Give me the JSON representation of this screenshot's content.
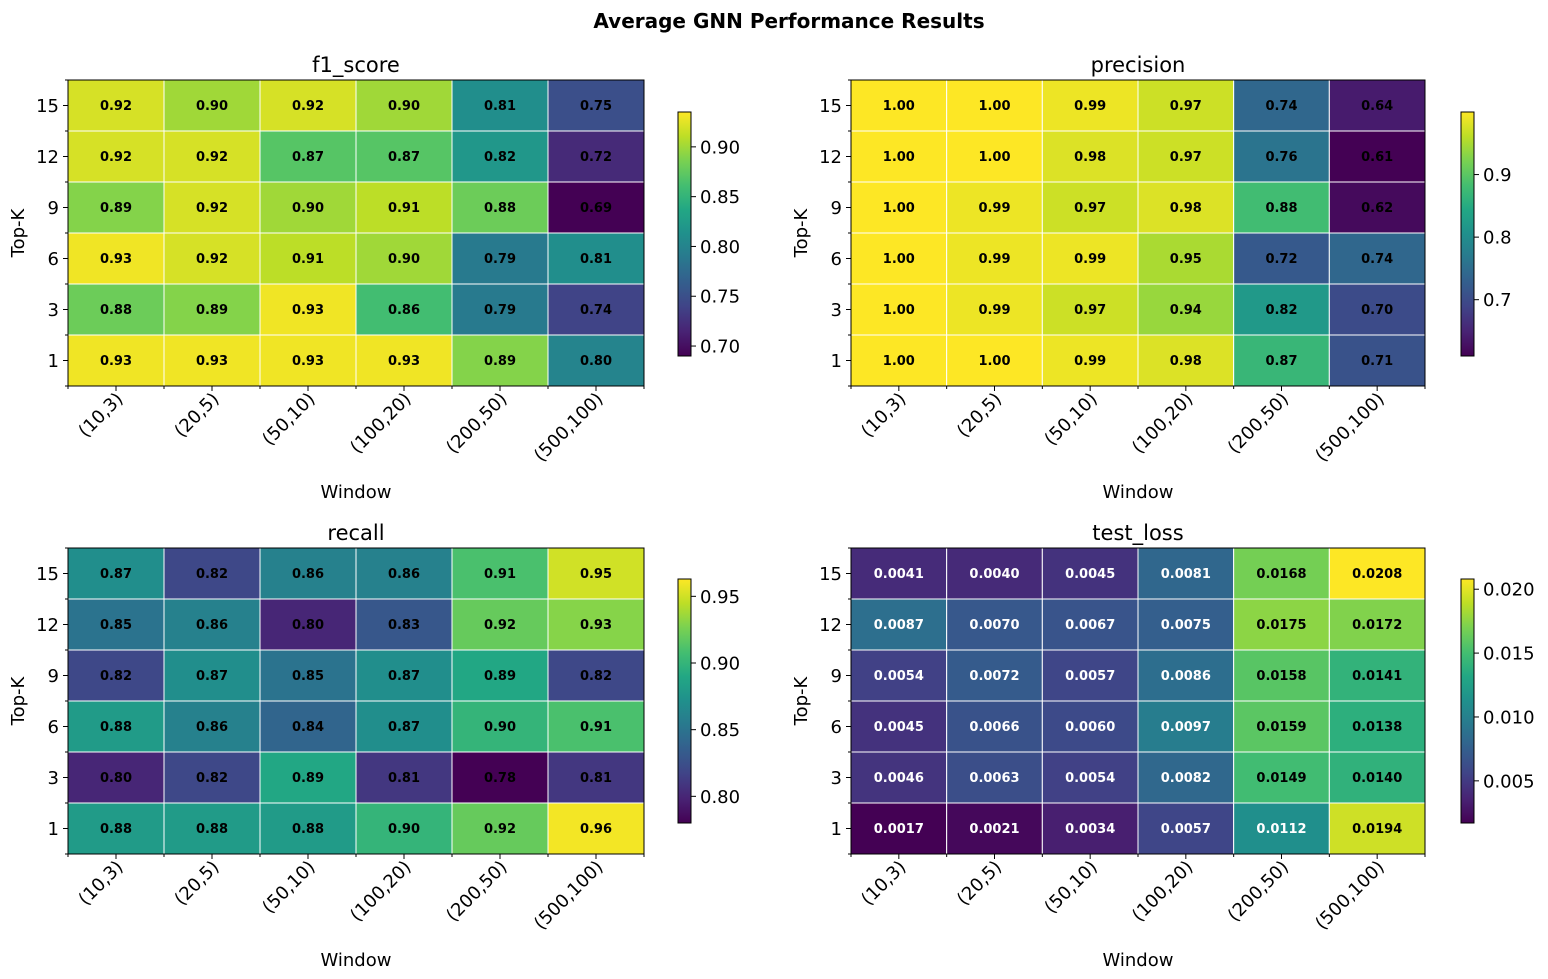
{
  "figure": {
    "title": "Average GNN Performance Results"
  },
  "chart_data": [
    {
      "type": "heatmap",
      "title": "f1_score",
      "xlabel": "Window",
      "ylabel": "Top-K",
      "x_categories": [
        "(10,3)",
        "(20,5)",
        "(50,10)",
        "(100,20)",
        "(200,50)",
        "(500,100)"
      ],
      "y_categories": [
        "15",
        "12",
        "9",
        "6",
        "3",
        "1"
      ],
      "values": [
        [
          0.92,
          0.9,
          0.92,
          0.9,
          0.81,
          0.75
        ],
        [
          0.92,
          0.92,
          0.87,
          0.87,
          0.82,
          0.72
        ],
        [
          0.89,
          0.92,
          0.9,
          0.91,
          0.88,
          0.69
        ],
        [
          0.93,
          0.92,
          0.91,
          0.9,
          0.79,
          0.81
        ],
        [
          0.88,
          0.89,
          0.93,
          0.86,
          0.79,
          0.74
        ],
        [
          0.93,
          0.93,
          0.93,
          0.93,
          0.89,
          0.8
        ]
      ],
      "decimals": 2,
      "label_color": "black",
      "colormap": "viridis",
      "color_range": [
        0.69,
        0.935
      ],
      "colorbar_ticks": [
        "0.70",
        "0.75",
        "0.80",
        "0.85",
        "0.90"
      ]
    },
    {
      "type": "heatmap",
      "title": "precision",
      "xlabel": "Window",
      "ylabel": "Top-K",
      "x_categories": [
        "(10,3)",
        "(20,5)",
        "(50,10)",
        "(100,20)",
        "(200,50)",
        "(500,100)"
      ],
      "y_categories": [
        "15",
        "12",
        "9",
        "6",
        "3",
        "1"
      ],
      "values": [
        [
          1.0,
          1.0,
          0.99,
          0.97,
          0.74,
          0.64
        ],
        [
          1.0,
          1.0,
          0.98,
          0.97,
          0.76,
          0.61
        ],
        [
          1.0,
          0.99,
          0.97,
          0.98,
          0.88,
          0.62
        ],
        [
          1.0,
          0.99,
          0.99,
          0.95,
          0.72,
          0.74
        ],
        [
          1.0,
          0.99,
          0.97,
          0.94,
          0.82,
          0.7
        ],
        [
          1.0,
          1.0,
          0.99,
          0.98,
          0.87,
          0.71
        ]
      ],
      "decimals": 2,
      "label_color": "black",
      "colormap": "viridis",
      "color_range": [
        0.61,
        1.0
      ],
      "colorbar_ticks": [
        "0.7",
        "0.8",
        "0.9"
      ]
    },
    {
      "type": "heatmap",
      "title": "recall",
      "xlabel": "Window",
      "ylabel": "Top-K",
      "x_categories": [
        "(10,3)",
        "(20,5)",
        "(50,10)",
        "(100,20)",
        "(200,50)",
        "(500,100)"
      ],
      "y_categories": [
        "15",
        "12",
        "9",
        "6",
        "3",
        "1"
      ],
      "values": [
        [
          0.87,
          0.82,
          0.86,
          0.86,
          0.91,
          0.95
        ],
        [
          0.85,
          0.86,
          0.8,
          0.83,
          0.92,
          0.93
        ],
        [
          0.82,
          0.87,
          0.85,
          0.87,
          0.89,
          0.82
        ],
        [
          0.88,
          0.86,
          0.84,
          0.87,
          0.9,
          0.91
        ],
        [
          0.8,
          0.82,
          0.89,
          0.81,
          0.78,
          0.81
        ],
        [
          0.88,
          0.88,
          0.88,
          0.9,
          0.92,
          0.96
        ]
      ],
      "decimals": 2,
      "label_color": "black",
      "colormap": "viridis",
      "color_range": [
        0.78,
        0.963
      ],
      "colorbar_ticks": [
        "0.80",
        "0.85",
        "0.90",
        "0.95"
      ]
    },
    {
      "type": "heatmap",
      "title": "test_loss",
      "xlabel": "Window",
      "ylabel": "Top-K",
      "x_categories": [
        "(10,3)",
        "(20,5)",
        "(50,10)",
        "(100,20)",
        "(200,50)",
        "(500,100)"
      ],
      "y_categories": [
        "15",
        "12",
        "9",
        "6",
        "3",
        "1"
      ],
      "values": [
        [
          0.0041,
          0.004,
          0.0045,
          0.0081,
          0.0168,
          0.0208
        ],
        [
          0.0087,
          0.007,
          0.0067,
          0.0075,
          0.0175,
          0.0172
        ],
        [
          0.0054,
          0.0072,
          0.0057,
          0.0086,
          0.0158,
          0.0141
        ],
        [
          0.0045,
          0.0066,
          0.006,
          0.0097,
          0.0159,
          0.0138
        ],
        [
          0.0046,
          0.0063,
          0.0054,
          0.0082,
          0.0149,
          0.014
        ],
        [
          0.0017,
          0.0021,
          0.0034,
          0.0057,
          0.0112,
          0.0194
        ]
      ],
      "decimals": 4,
      "label_color": "auto",
      "colormap": "viridis",
      "color_range": [
        0.0017,
        0.0208
      ],
      "colorbar_ticks": [
        "0.005",
        "0.010",
        "0.015",
        "0.020"
      ]
    }
  ]
}
